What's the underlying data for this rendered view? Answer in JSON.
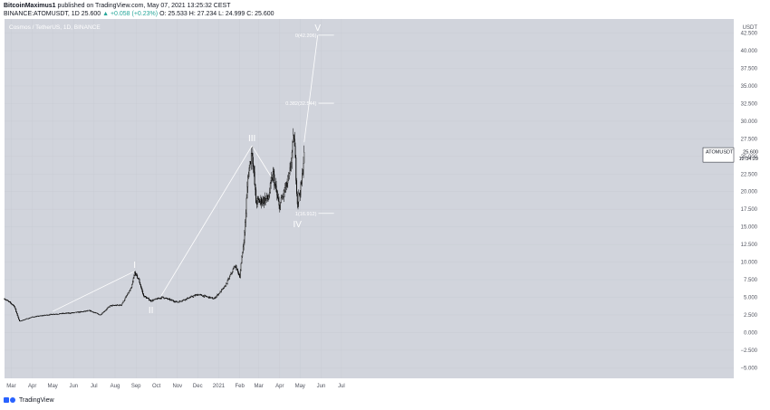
{
  "header": {
    "author": "BitcoinMaximus1",
    "published_text": "published on TradingView.com, May 07, 2021 13:25:32 CEST",
    "symbol_line": "BINANCE:ATOMUSDT, 1D",
    "price": "25.600",
    "change": "▲ +0.058 (+0.23%)",
    "ohlc": "O: 25.533  H: 27.234  L: 24.999  C: 25.600"
  },
  "footer": {
    "brand": "TradingView"
  },
  "colors": {
    "plot_bg": "#d1d4dc",
    "candle": "#000000",
    "wave_line": "#ffffff",
    "up": "#26a69a"
  },
  "chart_data": {
    "type": "candlestick",
    "title": "Cosmos / TetherUS, 1D, BINANCE",
    "currency": "USDT",
    "ylim": [
      -6.5,
      44.5
    ],
    "y_ticks": [
      -5,
      -2.5,
      0,
      2.5,
      5,
      7.5,
      10,
      12.5,
      15,
      17.5,
      20,
      22.5,
      25,
      27.5,
      30,
      32.5,
      35,
      37.5,
      40,
      42.5
    ],
    "x_ticks": [
      "Mar",
      "Apr",
      "May",
      "Jun",
      "Jul",
      "Aug",
      "Sep",
      "Oct",
      "Nov",
      "Dec",
      "2021",
      "Feb",
      "Mar",
      "Apr",
      "May",
      "Jun",
      "Jul"
    ],
    "price_path": [
      {
        "date": "2020-02-20",
        "price": 4.8
      },
      {
        "date": "2020-03-05",
        "price": 3.8
      },
      {
        "date": "2020-03-13",
        "price": 1.6
      },
      {
        "date": "2020-04-01",
        "price": 2.2
      },
      {
        "date": "2020-05-01",
        "price": 2.6
      },
      {
        "date": "2020-06-01",
        "price": 2.8
      },
      {
        "date": "2020-06-25",
        "price": 3.1
      },
      {
        "date": "2020-07-10",
        "price": 2.5
      },
      {
        "date": "2020-07-25",
        "price": 3.8
      },
      {
        "date": "2020-08-10",
        "price": 3.9
      },
      {
        "date": "2020-08-25",
        "price": 6.3
      },
      {
        "date": "2020-08-30",
        "price": 8.5
      },
      {
        "date": "2020-09-05",
        "price": 7.5
      },
      {
        "date": "2020-09-12",
        "price": 5.2
      },
      {
        "date": "2020-09-23",
        "price": 4.5
      },
      {
        "date": "2020-10-10",
        "price": 5.0
      },
      {
        "date": "2020-11-01",
        "price": 4.3
      },
      {
        "date": "2020-12-01",
        "price": 5.4
      },
      {
        "date": "2020-12-25",
        "price": 4.8
      },
      {
        "date": "2021-01-10",
        "price": 6.5
      },
      {
        "date": "2021-01-25",
        "price": 9.5
      },
      {
        "date": "2021-02-01",
        "price": 8.0
      },
      {
        "date": "2021-02-08",
        "price": 14.0
      },
      {
        "date": "2021-02-13",
        "price": 22.0
      },
      {
        "date": "2021-02-19",
        "price": 26.0
      },
      {
        "date": "2021-02-25",
        "price": 18.5
      },
      {
        "date": "2021-03-15",
        "price": 19.0
      },
      {
        "date": "2021-03-22",
        "price": 22.5
      },
      {
        "date": "2021-03-31",
        "price": 17.8
      },
      {
        "date": "2021-04-15",
        "price": 22.0
      },
      {
        "date": "2021-04-22",
        "price": 28.0
      },
      {
        "date": "2021-04-27",
        "price": 18.5
      },
      {
        "date": "2021-05-03",
        "price": 21.0
      },
      {
        "date": "2021-05-07",
        "price": 25.6
      }
    ],
    "wave_labels": [
      {
        "label": "I",
        "date": "2020-08-30",
        "price": 8.5,
        "position": "above"
      },
      {
        "label": "II",
        "date": "2020-09-23",
        "price": 4.3,
        "position": "below"
      },
      {
        "label": "III",
        "date": "2021-02-19",
        "price": 26.5,
        "position": "above"
      },
      {
        "label": "IV",
        "date": "2021-04-27",
        "price": 16.5,
        "position": "below"
      },
      {
        "label": "V",
        "date": "2021-05-27",
        "price": 42.2,
        "position": "above"
      }
    ],
    "wave_lines": [
      [
        {
          "date": "2020-05-01",
          "price": 3.0
        },
        {
          "date": "2020-08-30",
          "price": 8.7
        }
      ],
      [
        {
          "date": "2020-10-08",
          "price": 5.2
        },
        {
          "date": "2021-02-19",
          "price": 26.5
        }
      ],
      [
        {
          "date": "2021-02-19",
          "price": 26.5
        },
        {
          "date": "2021-03-20",
          "price": 22.0
        }
      ],
      [
        {
          "date": "2021-05-07",
          "price": 27.0
        },
        {
          "date": "2021-05-27",
          "price": 42.2
        }
      ]
    ],
    "fib_levels": [
      {
        "label": "0(42.206)",
        "value": 42.206
      },
      {
        "label": "0.382(32.544)",
        "value": 32.544
      },
      {
        "label": "1(16.912)",
        "value": 16.912
      }
    ],
    "fib_range": [
      "2021-05-28",
      "2021-06-20"
    ],
    "last_price": {
      "symbol": "ATOMUSDT",
      "value": "25.600",
      "countdown": "12:34:29"
    }
  }
}
